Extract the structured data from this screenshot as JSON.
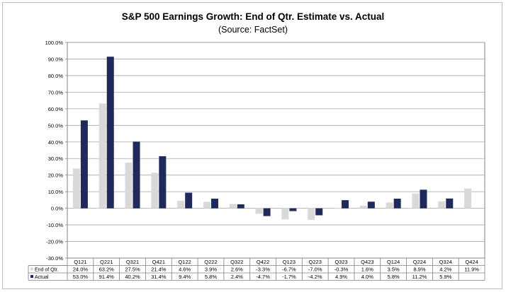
{
  "chart_data": {
    "type": "bar",
    "title": "S&P 500 Earnings Growth: End of Qtr. Estimate vs. Actual",
    "subtitle": "(Source: FactSet)",
    "categories": [
      "Q121",
      "Q221",
      "Q321",
      "Q421",
      "Q122",
      "Q222",
      "Q322",
      "Q422",
      "Q123",
      "Q223",
      "Q323",
      "Q423",
      "Q124",
      "Q224",
      "Q324",
      "Q424"
    ],
    "series": [
      {
        "name": "End of Qtr.",
        "color": "#d9d9d9",
        "values": [
          24.0,
          63.2,
          27.5,
          21.4,
          4.6,
          3.9,
          2.6,
          -3.3,
          -6.7,
          -7.0,
          -0.3,
          1.6,
          3.5,
          8.9,
          4.2,
          11.9
        ],
        "labels": [
          "24.0%",
          "63.2%",
          "27.5%",
          "21.4%",
          "4.6%",
          "3.9%",
          "2.6%",
          "-3.3%",
          "-6.7%",
          "-7.0%",
          "-0.3%",
          "1.6%",
          "3.5%",
          "8.9%",
          "4.2%",
          "11.9%"
        ]
      },
      {
        "name": "Actual",
        "color": "#1f2a5a",
        "values": [
          53.0,
          91.4,
          40.2,
          31.4,
          9.4,
          5.8,
          2.4,
          -4.7,
          -1.7,
          -4.2,
          4.9,
          4.0,
          5.8,
          11.2,
          5.9,
          null
        ],
        "labels": [
          "53.0%",
          "91.4%",
          "40.2%",
          "31.4%",
          "9.4%",
          "5.8%",
          "2.4%",
          "-4.7%",
          "-1.7%",
          "-4.2%",
          "4.9%",
          "4.0%",
          "5.8%",
          "11.2%",
          "5.9%",
          ""
        ]
      }
    ],
    "ylim": [
      -30,
      100
    ],
    "yticks": [
      -30,
      -20,
      -10,
      0,
      10,
      20,
      30,
      40,
      50,
      60,
      70,
      80,
      90,
      100
    ],
    "ytick_labels": [
      "-30.0%",
      "-20.0%",
      "-10.0%",
      "0.0%",
      "10.0%",
      "20.0%",
      "30.0%",
      "40.0%",
      "50.0%",
      "60.0%",
      "70.0%",
      "80.0%",
      "90.0%",
      "100.0%"
    ],
    "grid": true,
    "legend": "data-table"
  }
}
